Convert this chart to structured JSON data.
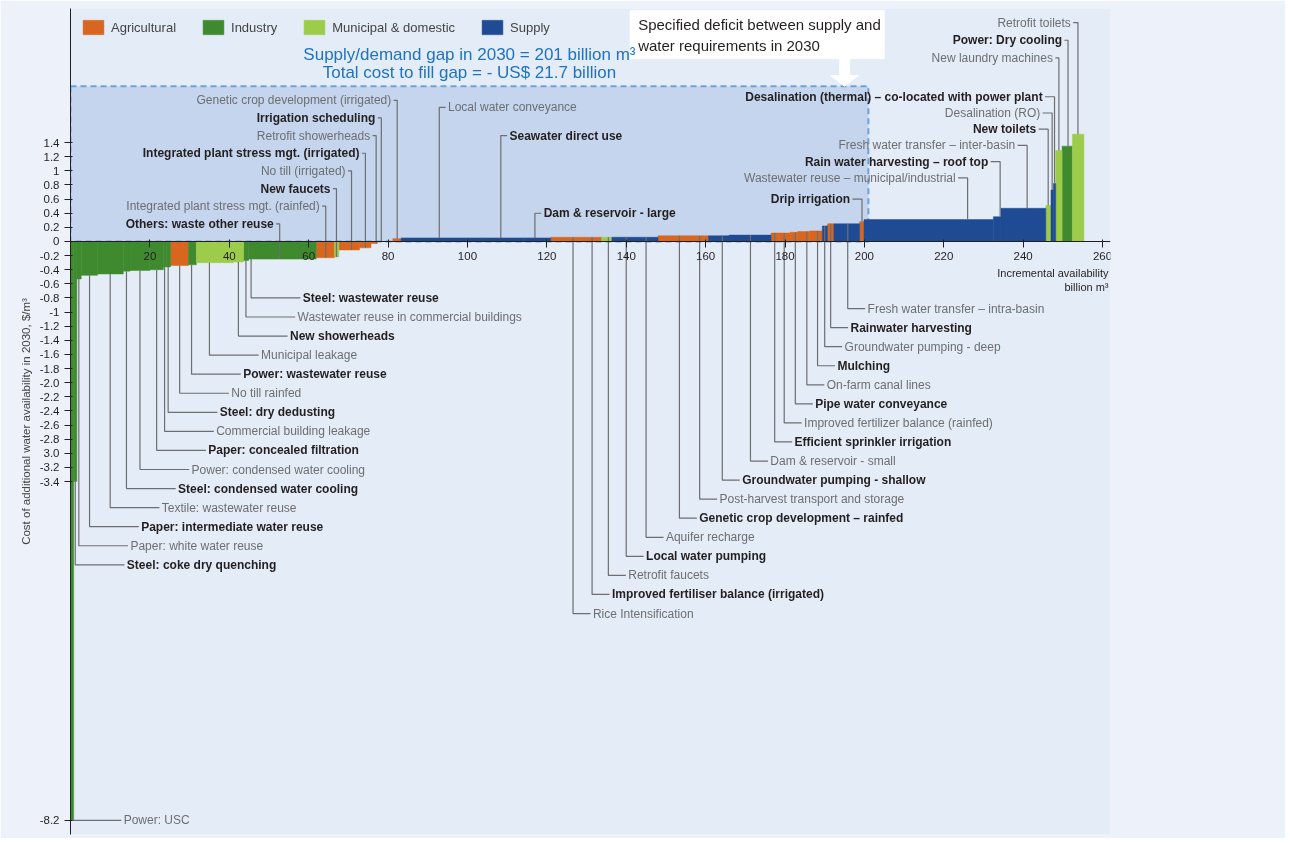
{
  "chart_data": {
    "type": "histogram",
    "ylabel": "Cost of additional water availability in 2030, $/m³",
    "xlabel": "Incremental availability billion m³",
    "bins": [
      0,
      0.8,
      1.6,
      2.7,
      6.8,
      13.3,
      15.0,
      20.0,
      23.4,
      24.1,
      25.2,
      29.7,
      31.7,
      41.0,
      43.6,
      44.9,
      61.9,
      66.5,
      67.6,
      72.8,
      75.7,
      77.3,
      81.2,
      83.3,
      99.8,
      103.5,
      114.1,
      121.0,
      128.7,
      133.8,
      136.4,
      140.3,
      148.0,
      157.7,
      160.7,
      165.9,
      176.5,
      178.3,
      181.3,
      183.2,
      186.2,
      189.4,
      190.7,
      192.3,
      198.8,
      199.9,
      232.5,
      234.4,
      245.7,
      247.0,
      247.6,
      248.2,
      249.8,
      252.4,
      255.3
    ],
    "series": [
      {
        "name": "Agricultural",
        "color": "#d9661f",
        "values": [
          null,
          null,
          null,
          null,
          null,
          null,
          null,
          null,
          null,
          null,
          -0.34,
          null,
          null,
          null,
          null,
          null,
          -0.23,
          null,
          -0.12,
          -0.09,
          -0.03,
          null,
          0.04,
          null,
          null,
          null,
          null,
          0.06,
          0.06,
          null,
          null,
          null,
          0.08,
          0.08,
          null,
          null,
          0.12,
          0.12,
          0.13,
          0.14,
          0.15,
          null,
          0.25,
          null,
          0.28,
          null,
          null,
          null,
          null,
          null,
          null,
          null,
          null,
          null
        ]
      },
      {
        "name": "Industry",
        "color": "#3f8a2e",
        "values": [
          -8.2,
          -3.4,
          -0.53,
          -0.48,
          -0.46,
          -0.42,
          -0.41,
          -0.4,
          -0.36,
          -0.36,
          null,
          -0.33,
          null,
          null,
          -0.27,
          -0.25,
          null,
          null,
          null,
          null,
          null,
          null,
          null,
          null,
          null,
          null,
          null,
          null,
          null,
          null,
          null,
          null,
          null,
          null,
          null,
          null,
          null,
          null,
          null,
          null,
          null,
          null,
          null,
          null,
          null,
          null,
          null,
          null,
          null,
          null,
          null,
          null,
          1.35,
          null
        ]
      },
      {
        "name": "Municipal & domestic",
        "color": "#9ccc4a",
        "values": [
          null,
          null,
          null,
          null,
          null,
          null,
          null,
          null,
          null,
          null,
          null,
          null,
          -0.3,
          -0.29,
          null,
          null,
          null,
          -0.22,
          null,
          null,
          null,
          null,
          null,
          null,
          null,
          null,
          null,
          null,
          null,
          0.06,
          null,
          null,
          null,
          null,
          null,
          null,
          null,
          null,
          null,
          null,
          null,
          null,
          null,
          null,
          null,
          null,
          null,
          null,
          0.51,
          null,
          null,
          1.29,
          null,
          1.52
        ]
      },
      {
        "name": "Supply",
        "color": "#1f4b94",
        "values": [
          null,
          null,
          null,
          null,
          null,
          null,
          null,
          null,
          null,
          null,
          null,
          null,
          null,
          null,
          null,
          null,
          null,
          null,
          null,
          null,
          null,
          null,
          null,
          0.05,
          0.05,
          0.05,
          0.05,
          null,
          null,
          null,
          0.06,
          0.06,
          null,
          null,
          0.08,
          0.09,
          null,
          null,
          null,
          null,
          null,
          0.22,
          null,
          0.25,
          null,
          0.31,
          0.35,
          0.47,
          null,
          0.73,
          0.82,
          null,
          null,
          null
        ]
      }
    ],
    "xlim": [
      0,
      262
    ],
    "xticks": [
      20,
      40,
      60,
      80,
      100,
      120,
      140,
      160,
      180,
      200,
      220,
      240,
      260
    ],
    "ylim": [
      -8.4,
      3.3
    ],
    "yticks": [
      1.4,
      1.2,
      1,
      0.8,
      0.6,
      0.4,
      0.2,
      0,
      -0.2,
      -0.4,
      -0.6,
      -0.8,
      -1,
      -1.2,
      -1.4,
      -1.6,
      -1.8,
      {
        "value": -2,
        "label": "-2.0"
      },
      -2.2,
      -2.4,
      -2.6,
      -2.8,
      {
        "value": -3,
        "label": "3.0"
      },
      -3.2,
      -3.4,
      -8.2
    ],
    "legend": "top left",
    "bands": [
      {
        "axis": "x",
        "from": 0,
        "to": 201,
        "label": "Supply/demand gap in 2030 = 201 billion m³",
        "color": "#b8cce8"
      }
    ],
    "annotations": [
      "Total cost to fill gap = - US$ 21.7 billion",
      "Specified deficit between supply and water requirements in 2030",
      {
        "text": "Steel: wastewater reuse",
        "x": 45.5,
        "y": -0.25
      },
      {
        "text": "Wastewater reuse in commercial buildings",
        "x": 44.2,
        "y": -0.27
      },
      {
        "text": "New showerheads",
        "x": 42.3,
        "y": -0.29
      },
      {
        "text": "Municipal leakage",
        "x": 35,
        "y": -0.3
      },
      {
        "text": "Power: wastewater reuse",
        "x": 30.5,
        "y": -0.33
      },
      {
        "text": "No till rainfed",
        "x": 27.5,
        "y": -0.34
      },
      {
        "text": "Steel: dry dedusting",
        "x": 24.6,
        "y": -0.36
      },
      {
        "text": "Commercial building leakage",
        "x": 23.7,
        "y": -0.36
      },
      {
        "text": "Paper: concealed filtration",
        "x": 21.7,
        "y": -0.4
      },
      {
        "text": "Power: condensed water cooling",
        "x": 17.5,
        "y": -0.41
      },
      {
        "text": "Steel: condensed water cooling",
        "x": 14.1,
        "y": -0.42
      },
      {
        "text": "Textile: wastewater reuse",
        "x": 10,
        "y": -0.46
      },
      {
        "text": "Paper: intermediate water reuse",
        "x": 4.8,
        "y": -0.48
      },
      {
        "text": "Paper: white water reuse",
        "x": 2.1,
        "y": -0.53
      },
      {
        "text": "Steel: coke dry quenching",
        "x": 1.2,
        "y": -3.4
      },
      {
        "text": "Power: USC",
        "x": 0.4,
        "y": -8.2
      },
      {
        "text": "Genetic crop development (irrigated)",
        "x": 82.3,
        "y": 0.04
      },
      {
        "text": "Irrigation scheduling",
        "x": 78.3,
        "y": 0
      },
      {
        "text": "Retrofit showerheads",
        "x": 77.0,
        "y": -0.03
      },
      {
        "text": "Integrated plant stress mgt. (irrigated)",
        "x": 74.3,
        "y": -0.09
      },
      {
        "text": "No till (irrigated)",
        "x": 70.8,
        "y": -0.12
      },
      {
        "text": "New faucets",
        "x": 67.0,
        "y": -0.22
      },
      {
        "text": "Integrated plant stress mgt. (rainfed)",
        "x": 64.3,
        "y": -0.23
      },
      {
        "text": "Others: waste other reuse",
        "x": 52.7,
        "y": -0.25
      },
      {
        "text": "Local water conveyance",
        "x": 92.9,
        "y": 0.05
      },
      {
        "text": "Seawater direct use",
        "x": 108.4,
        "y": 0.05
      },
      {
        "text": "Dam & reservoir - large",
        "x": 117,
        "y": 0.05
      },
      {
        "text": "Desalination (thermal) – co-located with power plant",
        "x": 247.9,
        "y": 0.82
      },
      {
        "text": "Desalination (RO)",
        "x": 247.3,
        "y": 0.73
      },
      {
        "text": "New toilets",
        "x": 246.3,
        "y": 0.51
      },
      {
        "text": "Fresh water transfer – inter-basin",
        "x": 241,
        "y": 0.47
      },
      {
        "text": "Rain water harvesting – roof top",
        "x": 234.2,
        "y": 0.35
      },
      {
        "text": "Wastewater reuse – municipal/industrial",
        "x": 226,
        "y": 0.31
      },
      {
        "text": "Drip irrigation",
        "x": 199.4,
        "y": 0.28
      },
      {
        "text": "New laundry machines",
        "x": 249,
        "y": 1.29
      },
      {
        "text": "Power: Dry cooling",
        "x": 251.3,
        "y": 1.35
      },
      {
        "text": "Retrofit toilets",
        "x": 253.8,
        "y": 1.52
      },
      {
        "text": "Fresh water transfer – intra-basin",
        "x": 195.8,
        "y": 0.25
      },
      {
        "text": "Rainwater harvesting",
        "x": 191.5,
        "y": 0.25
      },
      {
        "text": "Groundwater pumping - deep",
        "x": 190.0,
        "y": 0.22
      },
      {
        "text": "Mulching",
        "x": 188.2,
        "y": 0.15
      },
      {
        "text": "On-farm canal lines",
        "x": 185.5,
        "y": 0.14
      },
      {
        "text": "Pipe water conveyance",
        "x": 182.6,
        "y": 0.13
      },
      {
        "text": "Improved fertilizer balance (rainfed)",
        "x": 179.8,
        "y": 0.12
      },
      {
        "text": "Efficient sprinkler irrigation",
        "x": 177.4,
        "y": 0.12
      },
      {
        "text": "Dam & reservoir - small",
        "x": 171.3,
        "y": 0.09
      },
      {
        "text": "Groundwater pumping - shallow",
        "x": 164.2,
        "y": 0.08
      },
      {
        "text": "Post-harvest transport and storage",
        "x": 158.5,
        "y": 0.08
      },
      {
        "text": "Genetic crop development – rainfed",
        "x": 153.4,
        "y": 0.08
      },
      {
        "text": "Aquifer recharge",
        "x": 145,
        "y": 0.06
      },
      {
        "text": "Local water pumping",
        "x": 140,
        "y": 0.06
      },
      {
        "text": "Retrofit faucets",
        "x": 135.5,
        "y": 0.06
      },
      {
        "text": "Improved fertiliser balance (irrigated)",
        "x": 131.4,
        "y": 0.06
      },
      {
        "text": "Rice Intensification",
        "x": 126.6,
        "y": 0.06
      }
    ]
  }
}
